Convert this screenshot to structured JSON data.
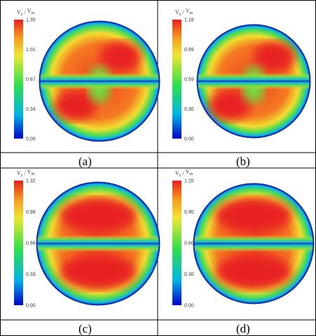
{
  "panels": [
    {
      "label": "(a)",
      "colorbar_label": {
        "numerator": {
          "base": "V",
          "sub": "z"
        },
        "separator": "/",
        "denominator": {
          "base": "V",
          "sub": "m"
        }
      },
      "ticks": [
        "1.35",
        "1.01",
        "0.67",
        "0.34",
        "0.00"
      ]
    },
    {
      "label": "(b)",
      "colorbar_label": {
        "numerator": {
          "base": "V",
          "sub": "z"
        },
        "separator": "/",
        "denominator": {
          "base": "V",
          "sub": "m"
        }
      },
      "ticks": [
        "1.18",
        "0.89",
        "0.59",
        "0.30",
        "0.00"
      ]
    },
    {
      "label": "(c)",
      "colorbar_label": {
        "numerator": {
          "base": "V",
          "sub": "z"
        },
        "separator": "/",
        "denominator": {
          "base": "V",
          "sub": "m"
        }
      },
      "ticks": [
        "1.32",
        "0.99",
        "0.66",
        "0.33",
        "0.00"
      ]
    },
    {
      "label": "(d)",
      "colorbar_label": {
        "numerator": {
          "base": "V",
          "sub": "z"
        },
        "separator": "/",
        "denominator": {
          "base": "V",
          "sub": "m"
        }
      },
      "ticks": [
        "1.20",
        "0.90",
        "0.60",
        "0.30",
        "0.00"
      ]
    }
  ]
}
